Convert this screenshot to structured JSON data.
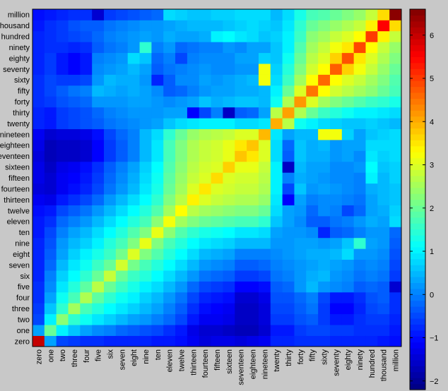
{
  "chart_data": {
    "type": "heatmap",
    "title": "",
    "xlabel": "",
    "ylabel": "",
    "categories": [
      "zero",
      "one",
      "two",
      "three",
      "four",
      "five",
      "six",
      "seven",
      "eight",
      "nine",
      "ten",
      "eleven",
      "twelve",
      "thirteen",
      "fourteen",
      "fifteen",
      "sixteen",
      "seventeen",
      "eighteen",
      "nineteen",
      "twenty",
      "thirty",
      "forty",
      "fifty",
      "sixty",
      "seventy",
      "eighty",
      "ninety",
      "hundred",
      "thousand",
      "million"
    ],
    "colorbar": {
      "range": [
        -2.2,
        6.6
      ],
      "ticks": [
        -2,
        -1,
        0,
        1,
        2,
        3,
        4,
        5,
        6
      ],
      "colormap": "jet"
    },
    "values": [
      [
        6.0,
        0.3,
        -0.5,
        -0.6,
        -0.7,
        -0.7,
        -0.8,
        -0.8,
        -0.8,
        -0.8,
        -0.9,
        -0.9,
        -1.0,
        -1.2,
        -1.4,
        -1.3,
        -1.3,
        -1.4,
        -1.3,
        -1.2,
        -0.8,
        -0.8,
        -0.7,
        -0.7,
        -0.7,
        -0.8,
        -0.8,
        -0.8,
        -0.8,
        -0.9,
        -1.0
      ],
      [
        0.3,
        2.0,
        1.0,
        0.6,
        0.3,
        0.1,
        0.0,
        -0.2,
        -0.3,
        -0.4,
        -0.5,
        -0.7,
        -0.9,
        -1.3,
        -1.5,
        -1.5,
        -1.6,
        -1.7,
        -1.7,
        -1.5,
        -0.9,
        -0.9,
        -0.6,
        -0.5,
        -0.5,
        -0.6,
        -0.6,
        -0.7,
        -0.7,
        -0.7,
        -0.9
      ],
      [
        -0.5,
        1.0,
        2.3,
        1.5,
        1.2,
        0.9,
        0.7,
        0.5,
        0.3,
        0.2,
        0.0,
        -0.2,
        -0.5,
        -0.9,
        -1.2,
        -1.2,
        -1.3,
        -1.6,
        -1.6,
        -1.4,
        -0.6,
        -0.6,
        -0.4,
        -0.3,
        -0.6,
        -0.9,
        -0.9,
        -0.7,
        -0.6,
        -0.6,
        -0.8
      ],
      [
        -0.6,
        0.6,
        1.5,
        2.5,
        1.7,
        1.4,
        1.1,
        0.9,
        0.7,
        0.5,
        0.3,
        0.0,
        -0.3,
        -0.7,
        -1.0,
        -1.1,
        -1.2,
        -1.6,
        -1.6,
        -1.4,
        -0.5,
        -0.5,
        -0.3,
        -0.1,
        -0.6,
        -1.1,
        -1.1,
        -0.8,
        -0.5,
        -0.4,
        -0.7
      ],
      [
        -0.7,
        0.3,
        1.2,
        1.7,
        2.6,
        1.9,
        1.5,
        1.2,
        1.0,
        0.7,
        0.5,
        0.2,
        -0.1,
        -0.5,
        -0.8,
        -0.9,
        -1.0,
        -1.5,
        -1.5,
        -1.3,
        -0.4,
        -0.4,
        -0.2,
        0.0,
        -0.5,
        -0.9,
        -0.9,
        -0.7,
        -0.4,
        -0.3,
        -0.7
      ],
      [
        -0.7,
        0.1,
        0.9,
        1.4,
        1.9,
        2.7,
        2.0,
        1.6,
        1.3,
        1.0,
        0.8,
        0.5,
        0.2,
        -0.2,
        -0.5,
        -0.6,
        -0.7,
        -1.1,
        -1.1,
        -1.0,
        -0.3,
        -0.2,
        0.2,
        0.5,
        0.2,
        0.1,
        0.0,
        -0.3,
        -0.2,
        -0.3,
        -1.5
      ],
      [
        -0.8,
        0.0,
        0.7,
        1.1,
        1.5,
        2.0,
        2.8,
        2.0,
        1.6,
        1.4,
        1.1,
        0.8,
        0.5,
        0.2,
        -0.1,
        -0.2,
        -0.3,
        -0.6,
        -0.6,
        -0.5,
        -0.1,
        0.0,
        0.2,
        0.4,
        0.5,
        0.2,
        0.1,
        -0.1,
        0.0,
        -0.1,
        -0.6
      ],
      [
        -0.8,
        -0.2,
        0.5,
        0.9,
        1.2,
        1.6,
        2.0,
        2.9,
        2.1,
        1.7,
        1.4,
        1.1,
        0.8,
        0.5,
        0.2,
        0.1,
        0.0,
        -0.3,
        -0.3,
        -0.2,
        0.0,
        0.1,
        0.2,
        0.3,
        0.4,
        0.3,
        0.2,
        0.0,
        0.1,
        0.0,
        -0.5
      ],
      [
        -0.8,
        -0.3,
        0.3,
        0.7,
        1.0,
        1.3,
        1.6,
        2.1,
        3.0,
        2.2,
        1.8,
        1.4,
        1.1,
        0.8,
        0.5,
        0.4,
        0.3,
        0.0,
        0.0,
        0.0,
        0.1,
        0.2,
        0.3,
        0.4,
        0.4,
        0.5,
        0.8,
        0.2,
        0.2,
        0.1,
        -0.4
      ],
      [
        -0.8,
        -0.4,
        0.2,
        0.5,
        0.7,
        1.0,
        1.4,
        1.7,
        2.2,
        3.1,
        2.2,
        1.7,
        1.4,
        1.1,
        0.9,
        0.8,
        0.7,
        0.5,
        0.5,
        0.5,
        0.2,
        0.2,
        0.3,
        0.3,
        0.2,
        0.3,
        0.6,
        1.5,
        0.3,
        0.2,
        -0.3
      ],
      [
        -0.9,
        -0.5,
        0.0,
        0.3,
        0.5,
        0.8,
        1.1,
        1.4,
        1.8,
        2.2,
        3.1,
        2.3,
        1.8,
        1.5,
        1.3,
        1.2,
        1.1,
        0.9,
        0.9,
        0.8,
        0.3,
        0.2,
        0.2,
        0.1,
        -0.8,
        -0.3,
        -0.2,
        0.0,
        0.2,
        0.2,
        -0.2
      ],
      [
        -0.9,
        -0.7,
        -0.2,
        0.0,
        0.2,
        0.5,
        0.8,
        1.1,
        1.4,
        1.7,
        2.3,
        3.2,
        2.5,
        2.2,
        2.0,
        1.9,
        1.8,
        1.7,
        1.7,
        1.5,
        0.6,
        0.3,
        0.1,
        -0.3,
        -0.3,
        -0.1,
        0.0,
        0.2,
        0.4,
        0.3,
        0.8
      ],
      [
        -1.0,
        -0.9,
        -0.5,
        -0.3,
        -0.1,
        0.2,
        0.5,
        0.8,
        1.1,
        1.4,
        1.8,
        2.5,
        3.3,
        2.7,
        2.5,
        2.4,
        2.3,
        2.2,
        2.2,
        2.0,
        0.8,
        0.3,
        0.2,
        -0.2,
        0.1,
        0.0,
        -0.5,
        -0.2,
        0.3,
        0.4,
        0.7
      ],
      [
        -1.2,
        -1.3,
        -0.9,
        -0.7,
        -0.5,
        -0.2,
        0.2,
        0.5,
        0.8,
        1.1,
        1.5,
        2.2,
        2.7,
        3.4,
        3.0,
        2.8,
        2.7,
        2.6,
        2.6,
        2.4,
        0.9,
        -1.1,
        0.3,
        0.0,
        0.1,
        0.1,
        0.0,
        -0.1,
        0.3,
        0.5,
        0.6
      ],
      [
        -1.4,
        -1.5,
        -1.2,
        -1.0,
        -0.8,
        -0.5,
        -0.1,
        0.2,
        0.5,
        0.9,
        1.3,
        2.0,
        2.5,
        3.0,
        3.5,
        3.0,
        2.9,
        2.8,
        2.8,
        2.6,
        1.0,
        -0.5,
        0.6,
        0.2,
        0.3,
        0.2,
        0.1,
        0.0,
        0.4,
        0.5,
        0.6
      ],
      [
        -1.3,
        -1.5,
        -1.2,
        -1.1,
        -0.9,
        -0.6,
        -0.2,
        0.1,
        0.4,
        0.8,
        1.2,
        1.9,
        2.4,
        2.8,
        3.0,
        3.6,
        3.0,
        2.9,
        2.9,
        2.7,
        1.0,
        0.0,
        0.4,
        0.3,
        0.2,
        0.1,
        0.1,
        0.0,
        1.0,
        0.5,
        0.7
      ],
      [
        -1.3,
        -1.6,
        -1.3,
        -1.2,
        -1.0,
        -0.7,
        -0.3,
        0.0,
        0.3,
        0.7,
        1.1,
        1.8,
        2.3,
        2.7,
        2.9,
        3.0,
        3.7,
        3.1,
        3.1,
        2.8,
        1.0,
        -1.6,
        0.5,
        0.3,
        0.3,
        0.1,
        0.1,
        0.2,
        1.1,
        0.6,
        0.7
      ],
      [
        -1.4,
        -1.7,
        -1.6,
        -1.6,
        -1.5,
        -1.1,
        -0.6,
        -0.3,
        0.0,
        0.5,
        0.9,
        1.7,
        2.2,
        2.6,
        2.8,
        2.9,
        3.1,
        3.8,
        3.5,
        3.0,
        0.8,
        -0.3,
        0.6,
        0.4,
        0.4,
        0.2,
        0.3,
        0.1,
        0.9,
        0.7,
        0.8
      ],
      [
        -1.3,
        -1.7,
        -1.6,
        -1.6,
        -1.5,
        -1.1,
        -0.6,
        -0.3,
        0.0,
        0.5,
        0.9,
        1.7,
        2.2,
        2.6,
        2.8,
        2.9,
        3.1,
        3.5,
        3.8,
        3.0,
        0.8,
        -0.2,
        0.6,
        0.4,
        0.5,
        0.2,
        0.3,
        0.3,
        0.8,
        0.8,
        0.8
      ],
      [
        -1.2,
        -1.5,
        -1.4,
        -1.4,
        -1.3,
        -1.0,
        -0.5,
        -0.2,
        0.0,
        0.5,
        0.8,
        1.5,
        2.0,
        2.4,
        2.6,
        2.7,
        2.8,
        3.0,
        3.0,
        3.9,
        0.9,
        0.3,
        0.5,
        0.5,
        3.2,
        3.2,
        0.7,
        0.3,
        0.6,
        0.7,
        0.8
      ],
      [
        -0.8,
        -0.9,
        -0.6,
        -0.5,
        -0.4,
        -0.3,
        -0.1,
        0.0,
        0.1,
        0.2,
        0.3,
        0.6,
        0.8,
        0.9,
        1.0,
        1.0,
        1.0,
        0.8,
        0.8,
        0.9,
        4.0,
        2.7,
        1.2,
        1.0,
        0.8,
        0.7,
        0.6,
        0.6,
        0.7,
        0.6,
        0.5
      ],
      [
        -0.8,
        -0.9,
        -0.6,
        -0.5,
        -0.4,
        -0.2,
        0.0,
        0.1,
        0.2,
        0.2,
        0.2,
        0.3,
        0.3,
        -1.1,
        -0.5,
        0.0,
        -1.6,
        -0.3,
        -0.2,
        0.3,
        2.7,
        4.1,
        2.6,
        2.0,
        1.6,
        1.4,
        1.2,
        1.0,
        1.0,
        0.9,
        0.8
      ],
      [
        -0.7,
        -0.6,
        -0.4,
        -0.3,
        -0.2,
        0.2,
        0.2,
        0.2,
        0.3,
        0.3,
        0.2,
        0.1,
        0.2,
        0.3,
        0.6,
        0.4,
        0.5,
        0.6,
        0.6,
        0.5,
        1.2,
        2.6,
        4.2,
        3.0,
        2.5,
        2.2,
        2.0,
        1.8,
        1.6,
        1.5,
        1.3
      ],
      [
        -0.7,
        -0.5,
        -0.3,
        -0.1,
        0.0,
        0.5,
        0.4,
        0.3,
        0.4,
        0.3,
        0.1,
        -0.3,
        -0.2,
        0.0,
        0.2,
        0.3,
        0.3,
        0.4,
        0.4,
        0.5,
        1.0,
        2.0,
        3.0,
        4.5,
        3.3,
        2.9,
        2.7,
        2.5,
        2.3,
        2.0,
        1.7
      ],
      [
        -0.7,
        -0.5,
        -0.6,
        -0.6,
        -0.5,
        0.2,
        0.5,
        0.4,
        0.4,
        0.2,
        -0.8,
        -0.3,
        0.1,
        0.1,
        0.3,
        0.2,
        0.3,
        0.4,
        0.5,
        3.2,
        0.8,
        1.6,
        2.5,
        3.3,
        4.6,
        3.3,
        3.0,
        2.8,
        2.5,
        2.2,
        1.8
      ],
      [
        -0.8,
        -0.6,
        -0.9,
        -1.1,
        -0.9,
        0.1,
        0.2,
        0.3,
        0.5,
        0.3,
        -0.3,
        -0.1,
        0.0,
        0.1,
        0.2,
        0.1,
        0.1,
        0.2,
        0.2,
        3.2,
        0.7,
        1.4,
        2.2,
        2.9,
        3.3,
        4.7,
        3.7,
        3.2,
        2.8,
        2.4,
        2.0
      ],
      [
        -0.8,
        -0.6,
        -0.9,
        -1.1,
        -0.9,
        0.0,
        0.1,
        0.2,
        0.8,
        0.6,
        -0.2,
        0.0,
        -0.5,
        0.0,
        0.1,
        0.1,
        0.1,
        0.3,
        0.3,
        0.7,
        0.6,
        1.2,
        2.0,
        2.7,
        3.0,
        3.7,
        4.8,
        3.5,
        3.0,
        2.6,
        2.2
      ],
      [
        -0.8,
        -0.7,
        -0.7,
        -0.8,
        -0.7,
        -0.3,
        -0.1,
        0.0,
        0.2,
        1.5,
        0.0,
        0.2,
        -0.2,
        -0.1,
        0.0,
        0.0,
        0.2,
        0.1,
        0.3,
        0.3,
        0.6,
        1.0,
        1.8,
        2.5,
        2.8,
        3.2,
        3.5,
        4.9,
        3.3,
        2.8,
        2.4
      ],
      [
        -0.8,
        -0.7,
        -0.6,
        -0.5,
        -0.4,
        -0.2,
        0.0,
        0.1,
        0.2,
        0.3,
        0.2,
        0.4,
        0.3,
        0.3,
        0.4,
        1.0,
        1.1,
        0.9,
        0.8,
        0.6,
        0.7,
        1.0,
        1.6,
        2.3,
        2.5,
        2.8,
        3.0,
        3.3,
        5.0,
        3.4,
        2.8
      ],
      [
        -0.9,
        -0.7,
        -0.6,
        -0.4,
        -0.3,
        -0.3,
        -0.1,
        0.0,
        0.1,
        0.2,
        0.2,
        0.3,
        0.4,
        0.5,
        0.5,
        0.5,
        0.6,
        0.7,
        0.8,
        0.7,
        0.6,
        0.9,
        1.5,
        2.0,
        2.2,
        2.4,
        2.6,
        2.8,
        3.4,
        5.5,
        3.6
      ],
      [
        -1.0,
        -0.9,
        -0.8,
        -0.7,
        -0.7,
        -1.5,
        -0.6,
        -0.5,
        -0.4,
        -0.3,
        -0.2,
        0.8,
        0.7,
        0.6,
        0.6,
        0.7,
        0.7,
        0.8,
        0.8,
        0.8,
        0.5,
        0.8,
        1.3,
        1.7,
        1.8,
        2.0,
        2.2,
        2.4,
        2.8,
        3.6,
        6.5
      ]
    ]
  }
}
